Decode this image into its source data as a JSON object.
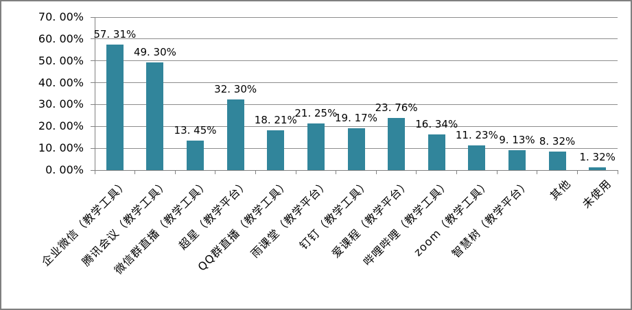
{
  "chart_data": {
    "type": "bar",
    "title": "",
    "xlabel": "",
    "ylabel": "",
    "legend": "none",
    "grid": true,
    "ylim": [
      0,
      70
    ],
    "y_step": 10,
    "categories": [
      "企业微信（教学工具）",
      "腾讯会议（教学工具）",
      "微信群直播（教学工具）",
      "超星（教学平台）",
      "QQ群直播（教学工具）",
      "雨课堂（教学平台）",
      "钉钉（教学工具）",
      "爱课程（教学平台）",
      "哔哩哔哩（教学工具）",
      "zoom（教学工具）",
      "智慧树（教学平台）",
      "其他",
      "未使用"
    ],
    "values": [
      57.31,
      49.3,
      13.45,
      32.3,
      18.21,
      21.25,
      19.17,
      23.76,
      16.34,
      11.23,
      9.13,
      8.32,
      1.32
    ],
    "data_labels": [
      "57. 31%",
      "49. 30%",
      "13. 45%",
      "32. 30%",
      "18. 21%",
      "21. 25%",
      "19. 17%",
      "23. 76%",
      "16. 34%",
      "11. 23%",
      "9. 13%",
      "8. 32%",
      "1. 32%"
    ],
    "y_tick_labels": [
      "0. 00%",
      "10. 00%",
      "20. 00%",
      "30. 00%",
      "40. 00%",
      "50. 00%",
      "60. 00%",
      "70. 00%"
    ]
  },
  "colors": {
    "bar": "#31859B",
    "gridline": "#8C8C8C",
    "axis": "#808080",
    "text": "#000000",
    "background": "#FFFFFF",
    "frame_border": "#7F7F7F"
  }
}
